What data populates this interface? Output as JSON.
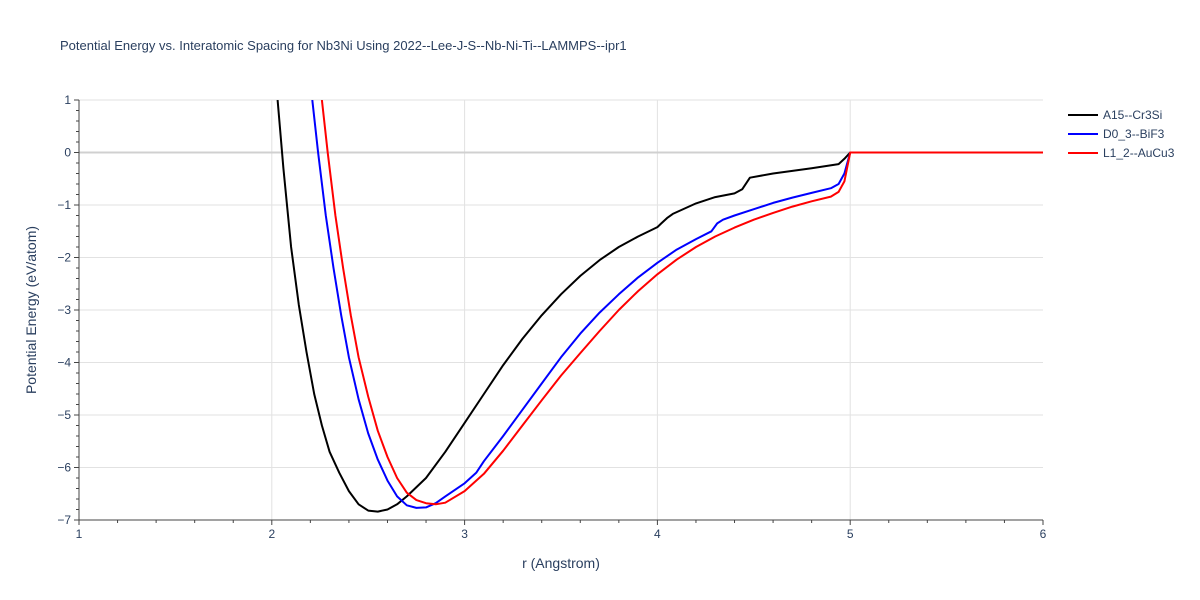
{
  "chart_data": {
    "type": "line",
    "title": "Potential Energy vs. Interatomic Spacing for Nb3Ni Using 2022--Lee-J-S--Nb-Ni-Ti--LAMMPS--ipr1",
    "xlabel": "r (Angstrom)",
    "ylabel": "Potential Energy (eV/atom)",
    "xlim": [
      1,
      6
    ],
    "ylim": [
      -7,
      1
    ],
    "xticks": [
      1,
      2,
      3,
      4,
      5,
      6
    ],
    "yticks": [
      1,
      0,
      -1,
      -2,
      -3,
      -4,
      -5,
      -6,
      -7
    ],
    "xtick_labels": [
      "1",
      "2",
      "3",
      "4",
      "5",
      "6"
    ],
    "ytick_labels": [
      "1",
      "0",
      "−1",
      "−2",
      "−3",
      "−4",
      "−5",
      "−6",
      "−7"
    ],
    "grid": true,
    "legend_position": "top-right",
    "series": [
      {
        "name": "A15--Cr3Si",
        "color": "#000000",
        "x": [
          2.03,
          2.06,
          2.1,
          2.14,
          2.18,
          2.22,
          2.26,
          2.3,
          2.35,
          2.4,
          2.45,
          2.5,
          2.55,
          2.6,
          2.65,
          2.7,
          2.8,
          2.9,
          3.0,
          3.1,
          3.2,
          3.3,
          3.4,
          3.5,
          3.6,
          3.7,
          3.8,
          3.9,
          4.0,
          4.02,
          4.05,
          4.08,
          4.2,
          4.3,
          4.4,
          4.44,
          4.48,
          4.6,
          4.7,
          4.8,
          4.94,
          4.97,
          5.0,
          5.5,
          6.0
        ],
        "y": [
          1.0,
          -0.3,
          -1.8,
          -2.9,
          -3.8,
          -4.6,
          -5.2,
          -5.7,
          -6.1,
          -6.45,
          -6.7,
          -6.82,
          -6.84,
          -6.8,
          -6.7,
          -6.55,
          -6.2,
          -5.7,
          -5.15,
          -4.6,
          -4.05,
          -3.55,
          -3.1,
          -2.7,
          -2.35,
          -2.05,
          -1.8,
          -1.6,
          -1.42,
          -1.35,
          -1.25,
          -1.17,
          -0.97,
          -0.85,
          -0.78,
          -0.7,
          -0.48,
          -0.4,
          -0.35,
          -0.3,
          -0.22,
          -0.12,
          0.0,
          0.0,
          0.0
        ]
      },
      {
        "name": "D0_3--BiF3",
        "color": "#0000ff",
        "x": [
          2.21,
          2.24,
          2.28,
          2.32,
          2.36,
          2.4,
          2.45,
          2.5,
          2.55,
          2.6,
          2.65,
          2.7,
          2.75,
          2.8,
          2.85,
          2.9,
          3.0,
          3.06,
          3.1,
          3.2,
          3.3,
          3.4,
          3.5,
          3.6,
          3.7,
          3.8,
          3.9,
          4.0,
          4.1,
          4.2,
          4.28,
          4.31,
          4.34,
          4.4,
          4.5,
          4.6,
          4.7,
          4.8,
          4.9,
          4.94,
          4.97,
          5.0,
          5.5,
          6.0
        ],
        "y": [
          1.0,
          0.0,
          -1.2,
          -2.2,
          -3.1,
          -3.9,
          -4.7,
          -5.35,
          -5.85,
          -6.25,
          -6.55,
          -6.72,
          -6.77,
          -6.76,
          -6.68,
          -6.55,
          -6.3,
          -6.1,
          -5.88,
          -5.4,
          -4.9,
          -4.4,
          -3.9,
          -3.45,
          -3.05,
          -2.7,
          -2.38,
          -2.1,
          -1.85,
          -1.65,
          -1.5,
          -1.35,
          -1.28,
          -1.2,
          -1.08,
          -0.96,
          -0.86,
          -0.77,
          -0.68,
          -0.6,
          -0.4,
          0.0,
          0.0,
          0.0
        ]
      },
      {
        "name": "L1_2--AuCu3",
        "color": "#ff0000",
        "x": [
          2.26,
          2.29,
          2.33,
          2.37,
          2.41,
          2.45,
          2.5,
          2.55,
          2.6,
          2.65,
          2.7,
          2.75,
          2.8,
          2.85,
          2.9,
          3.0,
          3.1,
          3.2,
          3.3,
          3.4,
          3.5,
          3.6,
          3.7,
          3.8,
          3.9,
          4.0,
          4.1,
          4.2,
          4.3,
          4.4,
          4.5,
          4.6,
          4.7,
          4.8,
          4.9,
          4.94,
          4.97,
          5.0,
          5.5,
          6.0
        ],
        "y": [
          1.0,
          0.0,
          -1.2,
          -2.2,
          -3.1,
          -3.9,
          -4.65,
          -5.3,
          -5.8,
          -6.2,
          -6.48,
          -6.62,
          -6.68,
          -6.7,
          -6.67,
          -6.45,
          -6.12,
          -5.68,
          -5.2,
          -4.72,
          -4.25,
          -3.82,
          -3.4,
          -3.0,
          -2.64,
          -2.32,
          -2.04,
          -1.8,
          -1.6,
          -1.43,
          -1.28,
          -1.15,
          -1.03,
          -0.93,
          -0.84,
          -0.75,
          -0.55,
          0.0,
          0.0,
          0.0
        ]
      }
    ]
  }
}
